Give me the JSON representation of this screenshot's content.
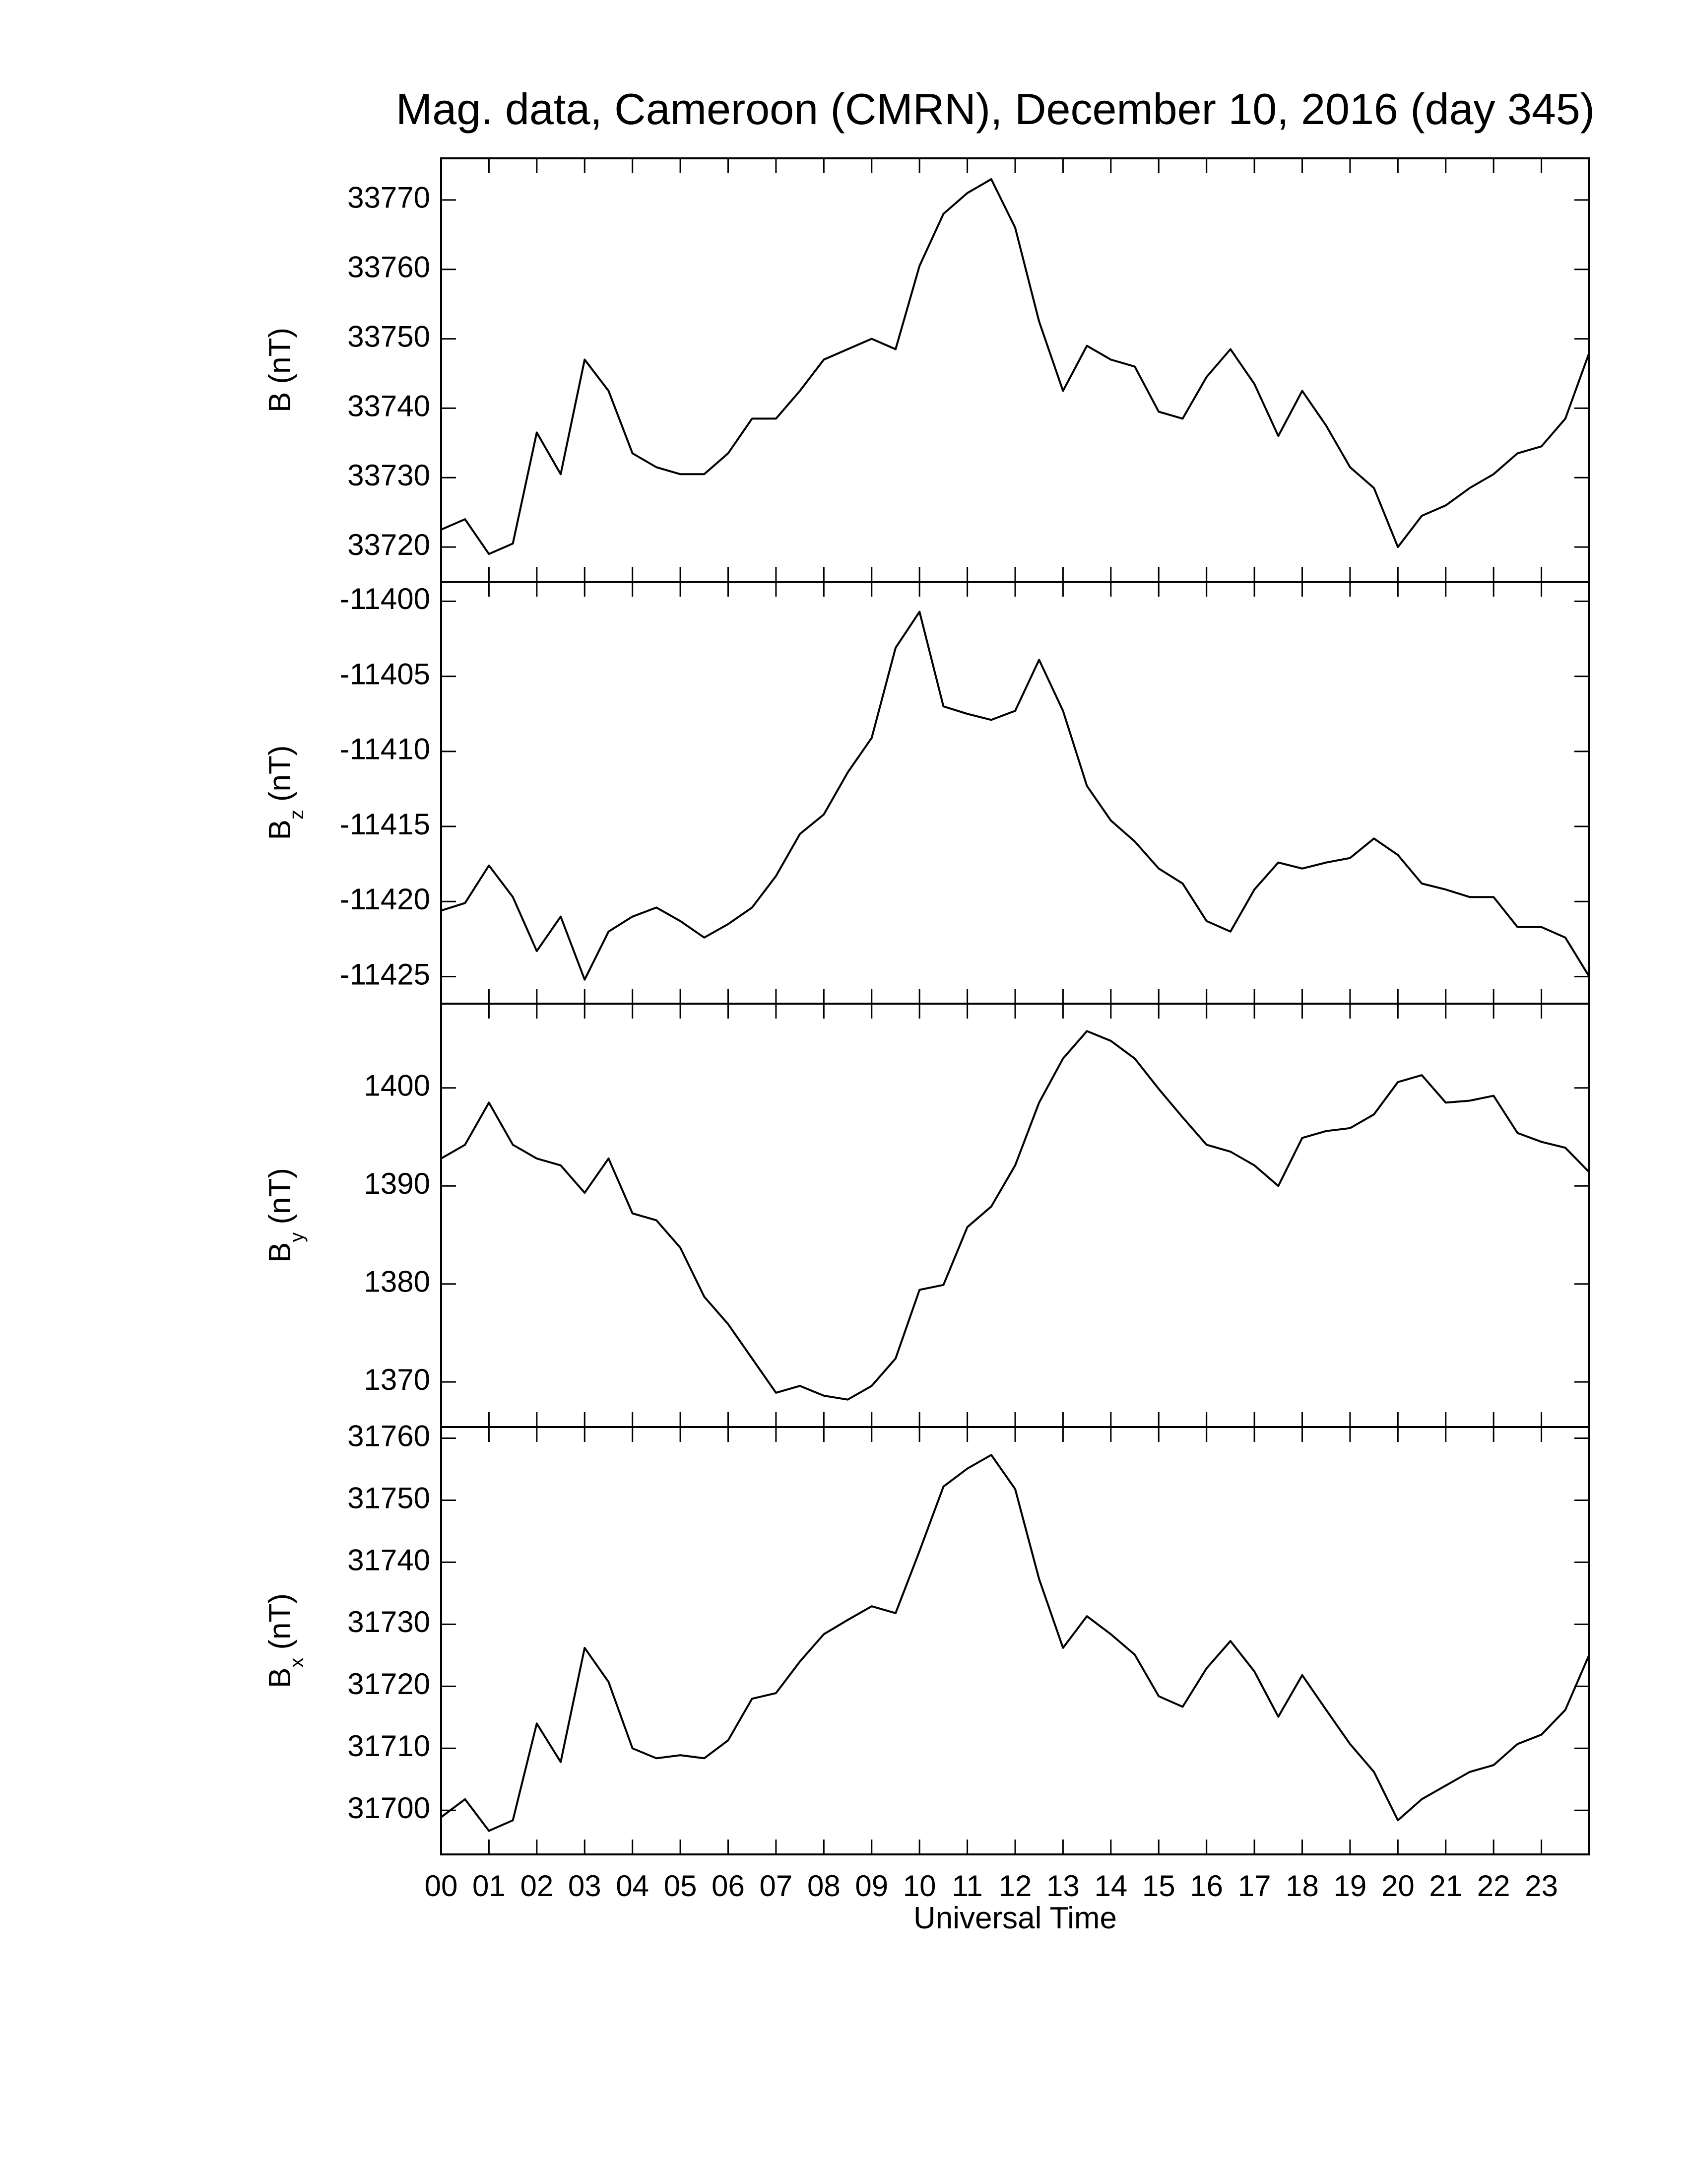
{
  "chart_data": [
    {
      "type": "line",
      "title": "Mag. data, Cameroon (CMRN), December 10, 2016 (day 345)",
      "ylabel": {
        "base": "B",
        "unit": "(nT)"
      },
      "color": "#000000",
      "xlim": [
        0,
        24
      ],
      "xticks": [
        0,
        1,
        2,
        3,
        4,
        5,
        6,
        7,
        8,
        9,
        10,
        11,
        12,
        13,
        14,
        15,
        16,
        17,
        18,
        19,
        20,
        21,
        22,
        23
      ],
      "ylim": [
        33715,
        33776
      ],
      "yticks": [
        33720,
        33730,
        33740,
        33750,
        33760,
        33770
      ],
      "x": [
        0,
        0.5,
        1,
        1.5,
        2,
        2.5,
        3,
        3.5,
        4,
        4.5,
        5,
        5.5,
        6,
        6.5,
        7,
        7.5,
        8,
        8.5,
        9,
        9.5,
        10,
        10.5,
        11,
        11.5,
        12,
        12.5,
        13,
        13.5,
        14,
        14.5,
        15,
        15.5,
        16,
        16.5,
        17,
        17.5,
        18,
        18.5,
        19,
        19.5,
        20,
        20.5,
        21,
        21.5,
        22,
        22.5,
        23,
        23.5,
        24
      ],
      "values": [
        33722.5,
        33724,
        33719,
        33720.5,
        33736.5,
        33730.5,
        33747,
        33742.5,
        33733.5,
        33731.5,
        33730.5,
        33730.5,
        33733.5,
        33738.5,
        33738.5,
        33742.5,
        33747,
        33748.5,
        33750,
        33748.5,
        33760.5,
        33768,
        33771,
        33773,
        33766,
        33752.5,
        33742.5,
        33749,
        33747,
        33746,
        33739.5,
        33738.5,
        33744.5,
        33748.5,
        33743.5,
        33736,
        33742.5,
        33737.5,
        33731.5,
        33728.5,
        33720,
        33724.5,
        33726,
        33728.5,
        33730.5,
        33733.5,
        33734.5,
        33738.5,
        33748
      ]
    },
    {
      "type": "line",
      "ylabel": {
        "base": "B",
        "sub": "z",
        "unit": "(nT)"
      },
      "color": "#000000",
      "xlim": [
        0,
        24
      ],
      "xticks": [
        0,
        1,
        2,
        3,
        4,
        5,
        6,
        7,
        8,
        9,
        10,
        11,
        12,
        13,
        14,
        15,
        16,
        17,
        18,
        19,
        20,
        21,
        22,
        23
      ],
      "ylim": [
        -11426.8,
        -11398.7
      ],
      "yticks": [
        -11425,
        -11420,
        -11415,
        -11410,
        -11405,
        -11400
      ],
      "x": [
        0,
        0.5,
        1,
        1.5,
        2,
        2.5,
        3,
        3.5,
        4,
        4.5,
        5,
        5.5,
        6,
        6.5,
        7,
        7.5,
        8,
        8.5,
        9,
        9.5,
        10,
        10.5,
        11,
        11.5,
        12,
        12.5,
        13,
        13.5,
        14,
        14.5,
        15,
        15.5,
        16,
        16.5,
        17,
        17.5,
        18,
        18.5,
        19,
        19.5,
        20,
        20.5,
        21,
        21.5,
        22,
        22.5,
        23,
        23.5,
        24
      ],
      "values": [
        -11420.6,
        -11420.1,
        -11417.6,
        -11419.7,
        -11423.3,
        -11421,
        -11425.2,
        -11422,
        -11421,
        -11420.4,
        -11421.3,
        -11422.4,
        -11421.5,
        -11420.4,
        -11418.3,
        -11415.5,
        -11414.2,
        -11411.4,
        -11409.1,
        -11403.1,
        -11400.7,
        -11407,
        -11407.5,
        -11407.9,
        -11407.3,
        -11403.9,
        -11407.3,
        -11412.3,
        -11414.6,
        -11416,
        -11417.8,
        -11418.8,
        -11421.3,
        -11422,
        -11419.2,
        -11417.4,
        -11417.8,
        -11417.4,
        -11417.1,
        -11415.8,
        -11416.9,
        -11418.8,
        -11419.2,
        -11419.7,
        -11419.7,
        -11421.7,
        -11421.7,
        -11422.4,
        -11425
      ]
    },
    {
      "type": "line",
      "ylabel": {
        "base": "B",
        "sub": "y",
        "unit": "(nT)"
      },
      "color": "#000000",
      "xlim": [
        0,
        24
      ],
      "xticks": [
        0,
        1,
        2,
        3,
        4,
        5,
        6,
        7,
        8,
        9,
        10,
        11,
        12,
        13,
        14,
        15,
        16,
        17,
        18,
        19,
        20,
        21,
        22,
        23
      ],
      "ylim": [
        1365.4,
        1408.6
      ],
      "yticks": [
        1370,
        1380,
        1390,
        1400
      ],
      "x": [
        0,
        0.5,
        1,
        1.5,
        2,
        2.5,
        3,
        3.5,
        4,
        4.5,
        5,
        5.5,
        6,
        6.5,
        7,
        7.5,
        8,
        8.5,
        9,
        9.5,
        10,
        10.5,
        11,
        11.5,
        12,
        12.5,
        13,
        13.5,
        14,
        14.5,
        15,
        15.5,
        16,
        16.5,
        17,
        17.5,
        18,
        18.5,
        19,
        19.5,
        20,
        20.5,
        21,
        21.5,
        22,
        22.5,
        23,
        23.5,
        24
      ],
      "values": [
        1392.8,
        1394.2,
        1398.5,
        1394.2,
        1392.8,
        1392.1,
        1389.3,
        1392.8,
        1387.2,
        1386.5,
        1383.7,
        1378.7,
        1375.9,
        1372.4,
        1368.9,
        1369.6,
        1368.6,
        1368.2,
        1369.6,
        1372.4,
        1379.4,
        1379.9,
        1385.8,
        1387.9,
        1392.1,
        1398.5,
        1403,
        1405.8,
        1404.8,
        1403,
        1399.9,
        1397,
        1394.2,
        1393.5,
        1392.1,
        1390,
        1394.9,
        1395.6,
        1395.9,
        1397.3,
        1400.6,
        1401.3,
        1398.5,
        1398.7,
        1399.2,
        1395.4,
        1394.5,
        1393.9,
        1391.4
      ]
    },
    {
      "type": "line",
      "xlabel": "Universal Time",
      "ylabel": {
        "base": "B",
        "sub": "x",
        "unit": "(nT)"
      },
      "color": "#000000",
      "xlim": [
        0,
        24
      ],
      "xticks": [
        {
          "value": 0,
          "label": "00"
        },
        {
          "value": 1,
          "label": "01"
        },
        {
          "value": 2,
          "label": "02"
        },
        {
          "value": 3,
          "label": "03"
        },
        {
          "value": 4,
          "label": "04"
        },
        {
          "value": 5,
          "label": "05"
        },
        {
          "value": 6,
          "label": "06"
        },
        {
          "value": 7,
          "label": "07"
        },
        {
          "value": 8,
          "label": "08"
        },
        {
          "value": 9,
          "label": "09"
        },
        {
          "value": 10,
          "label": "10"
        },
        {
          "value": 11,
          "label": "11"
        },
        {
          "value": 12,
          "label": "12"
        },
        {
          "value": 13,
          "label": "13"
        },
        {
          "value": 14,
          "label": "14"
        },
        {
          "value": 15,
          "label": "15"
        },
        {
          "value": 16,
          "label": "16"
        },
        {
          "value": 17,
          "label": "17"
        },
        {
          "value": 18,
          "label": "18"
        },
        {
          "value": 19,
          "label": "19"
        },
        {
          "value": 20,
          "label": "20"
        },
        {
          "value": 21,
          "label": "21"
        },
        {
          "value": 22,
          "label": "22"
        },
        {
          "value": 23,
          "label": "23"
        }
      ],
      "ylim": [
        31692.9,
        31761.8
      ],
      "yticks": [
        31700,
        31710,
        31720,
        31730,
        31740,
        31750,
        31760
      ],
      "x": [
        0,
        0.5,
        1,
        1.5,
        2,
        2.5,
        3,
        3.5,
        4,
        4.5,
        5,
        5.5,
        6,
        6.5,
        7,
        7.5,
        8,
        8.5,
        9,
        9.5,
        10,
        10.5,
        11,
        11.5,
        12,
        12.5,
        13,
        13.5,
        14,
        14.5,
        15,
        15.5,
        16,
        16.5,
        17,
        17.5,
        18,
        18.5,
        19,
        19.5,
        20,
        20.5,
        21,
        21.5,
        22,
        22.5,
        23,
        23.5,
        24
      ],
      "values": [
        31698.9,
        31701.8,
        31696.7,
        31698.4,
        31714,
        31707.8,
        31726.2,
        31720.7,
        31710,
        31708.4,
        31708.9,
        31708.4,
        31711.3,
        31718,
        31718.9,
        31724,
        31728.4,
        31730.7,
        31732.9,
        31731.8,
        31741.8,
        31752.2,
        31755.1,
        31757.3,
        31751.8,
        31737.3,
        31726.2,
        31731.3,
        31728.4,
        31725.1,
        31718.4,
        31716.7,
        31722.9,
        31727.3,
        31722.4,
        31715.1,
        31721.8,
        31716.2,
        31710.7,
        31706.2,
        31698.4,
        31701.8,
        31704,
        31706.2,
        31707.3,
        31710.7,
        31712.2,
        31716.2,
        31725.1
      ]
    }
  ]
}
